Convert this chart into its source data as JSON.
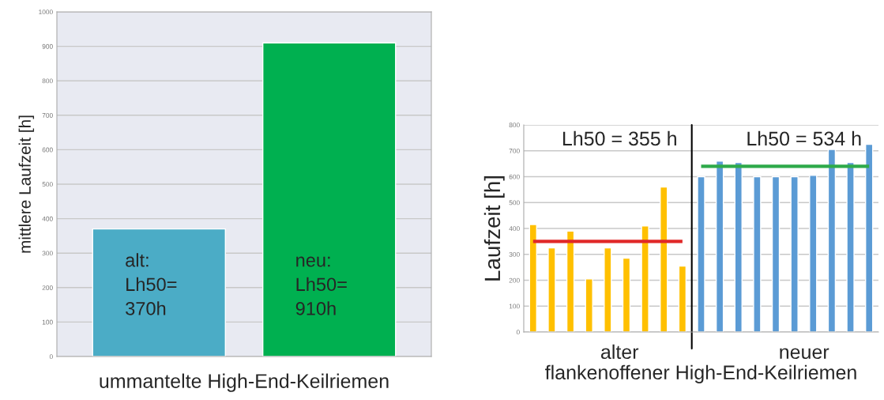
{
  "chart_data": [
    {
      "type": "bar",
      "ylabel": "mittlere Laufzeit [h]",
      "xlabel": "ummantelte High-End-Keilriemen",
      "categories": [
        null,
        null
      ],
      "values": [
        370,
        910
      ],
      "colors": [
        "#4bacc6",
        "#00b050"
      ],
      "ylim": [
        0,
        1000
      ],
      "yticks": [
        0,
        100,
        200,
        300,
        400,
        500,
        600,
        700,
        800,
        900,
        1000
      ],
      "grid": "y",
      "annotations": [
        "alt:\nLh50=\n370h",
        "neu:\nLh50=\n910h"
      ]
    },
    {
      "type": "bar",
      "ylabel": "Laufzeit [h]",
      "xlabel": "flankenoffener High-End-Keilriemen",
      "categories": [
        null,
        null,
        null,
        null,
        null,
        null,
        null,
        null,
        null,
        null,
        null,
        null,
        null,
        null,
        null,
        null,
        null,
        null,
        null
      ],
      "ylim": [
        0,
        800
      ],
      "yticks": [
        0,
        100,
        200,
        300,
        400,
        500,
        600,
        700,
        800
      ],
      "grid": "y",
      "tick_labels": "y",
      "series": [
        {
          "type": "bar",
          "colors": [
            "#ffc000",
            "#ffc000",
            "#ffc000",
            "#ffc000",
            "#ffc000",
            "#ffc000",
            "#ffc000",
            "#ffc000",
            "#ffc000",
            "#5b9bd5",
            "#5b9bd5",
            "#5b9bd5",
            "#5b9bd5",
            "#5b9bd5",
            "#5b9bd5",
            "#5b9bd5",
            "#5b9bd5",
            "#5b9bd5",
            "#5b9bd5"
          ],
          "values": [
            415,
            325,
            390,
            205,
            325,
            285,
            410,
            560,
            255,
            600,
            660,
            655,
            600,
            600,
            600,
            605,
            705,
            655,
            725
          ]
        },
        {
          "type": "line",
          "color": "#e02828",
          "values": [
            350,
            350,
            350,
            350,
            350,
            350,
            350,
            350,
            350,
            null,
            null,
            null,
            null,
            null,
            null,
            null,
            null,
            null,
            null
          ]
        },
        {
          "type": "line",
          "color": "#2eaa4a",
          "values": [
            null,
            null,
            null,
            null,
            null,
            null,
            null,
            null,
            null,
            640,
            640,
            640,
            640,
            640,
            640,
            640,
            640,
            640,
            640
          ]
        }
      ],
      "annotations": [
        "Lh50 = 355 h",
        "Lh50 = 534 h",
        "alter",
        "neuer"
      ]
    }
  ]
}
